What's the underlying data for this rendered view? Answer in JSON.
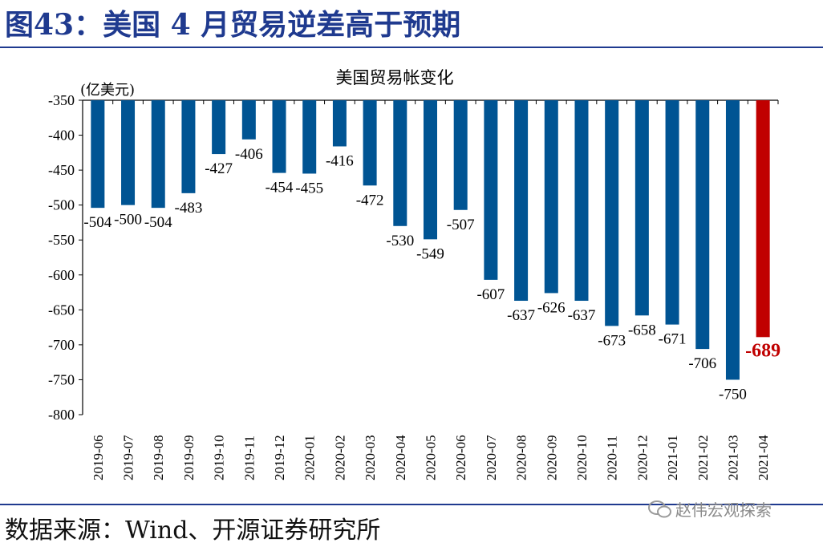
{
  "figure_title": "图43：美国 4 月贸易逆差高于预期",
  "source": "数据来源：Wind、开源证券研究所",
  "watermark": "赵伟宏观探索",
  "colors": {
    "bar": "#005493",
    "highlight": "#c00000",
    "title": "#1f3a8f"
  },
  "chart_data": {
    "type": "bar",
    "title": "美国贸易帐变化",
    "ylabel": "(亿美元)",
    "xlabel": "",
    "ylim": [
      -800,
      -350
    ],
    "yticks": [
      -350,
      -400,
      -450,
      -500,
      -550,
      -600,
      -650,
      -700,
      -750,
      -800
    ],
    "highlight_index": 22,
    "categories": [
      "2019-06",
      "2019-07",
      "2019-08",
      "2019-09",
      "2019-10",
      "2019-11",
      "2019-12",
      "2020-01",
      "2020-02",
      "2020-03",
      "2020-04",
      "2020-05",
      "2020-06",
      "2020-07",
      "2020-08",
      "2020-09",
      "2020-10",
      "2020-11",
      "2020-12",
      "2021-01",
      "2021-02",
      "2021-03",
      "2021-04"
    ],
    "values": [
      -504,
      -500,
      -504,
      -483,
      -427,
      -406,
      -454,
      -455,
      -416,
      -472,
      -530,
      -549,
      -507,
      -607,
      -637,
      -626,
      -637,
      -673,
      -658,
      -671,
      -706,
      -750,
      -689
    ]
  }
}
